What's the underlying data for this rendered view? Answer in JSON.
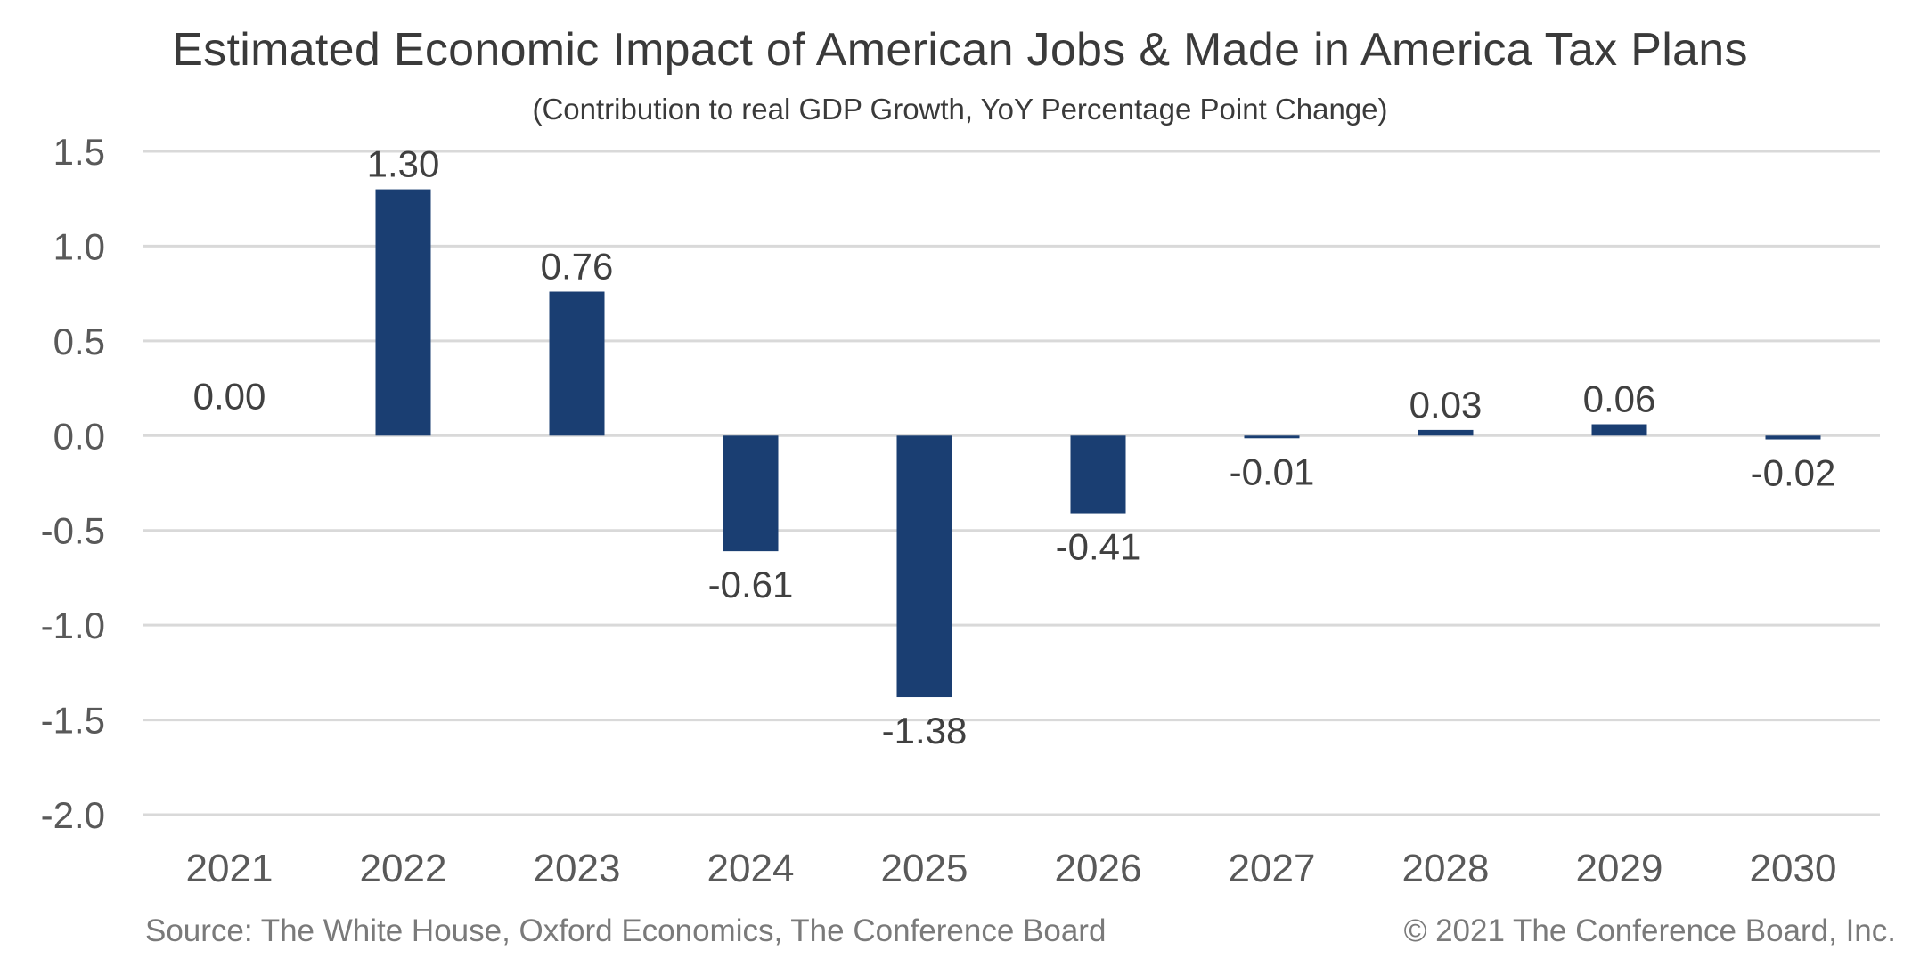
{
  "chart_data": {
    "type": "bar",
    "title": "Estimated Economic Impact of American Jobs & Made in America Tax Plans",
    "subtitle": "(Contribution to real GDP Growth, YoY Percentage Point Change)",
    "xlabel": "",
    "ylabel": "",
    "categories": [
      "2021",
      "2022",
      "2023",
      "2024",
      "2025",
      "2026",
      "2027",
      "2028",
      "2029",
      "2030"
    ],
    "values": [
      0.0,
      1.3,
      0.76,
      -0.61,
      -1.38,
      -0.41,
      -0.01,
      0.03,
      0.06,
      -0.02
    ],
    "data_labels": [
      "0.00",
      "1.30",
      "0.76",
      "-0.61",
      "-1.38",
      "-0.41",
      "-0.01",
      "0.03",
      "0.06",
      "-0.02"
    ],
    "ylim": [
      -2.0,
      1.5
    ],
    "yticks": [
      "1.5",
      "1.0",
      "0.5",
      "0.0",
      "-0.5",
      "-1.0",
      "-1.5",
      "-2.0"
    ],
    "grid": true,
    "legend": "none",
    "bar_color": "#1a3e72",
    "grid_color": "#d9d9d9"
  },
  "footer": {
    "source": "Source: The White House, Oxford Economics, The Conference Board",
    "copyright": "© 2021 The Conference Board, Inc."
  }
}
